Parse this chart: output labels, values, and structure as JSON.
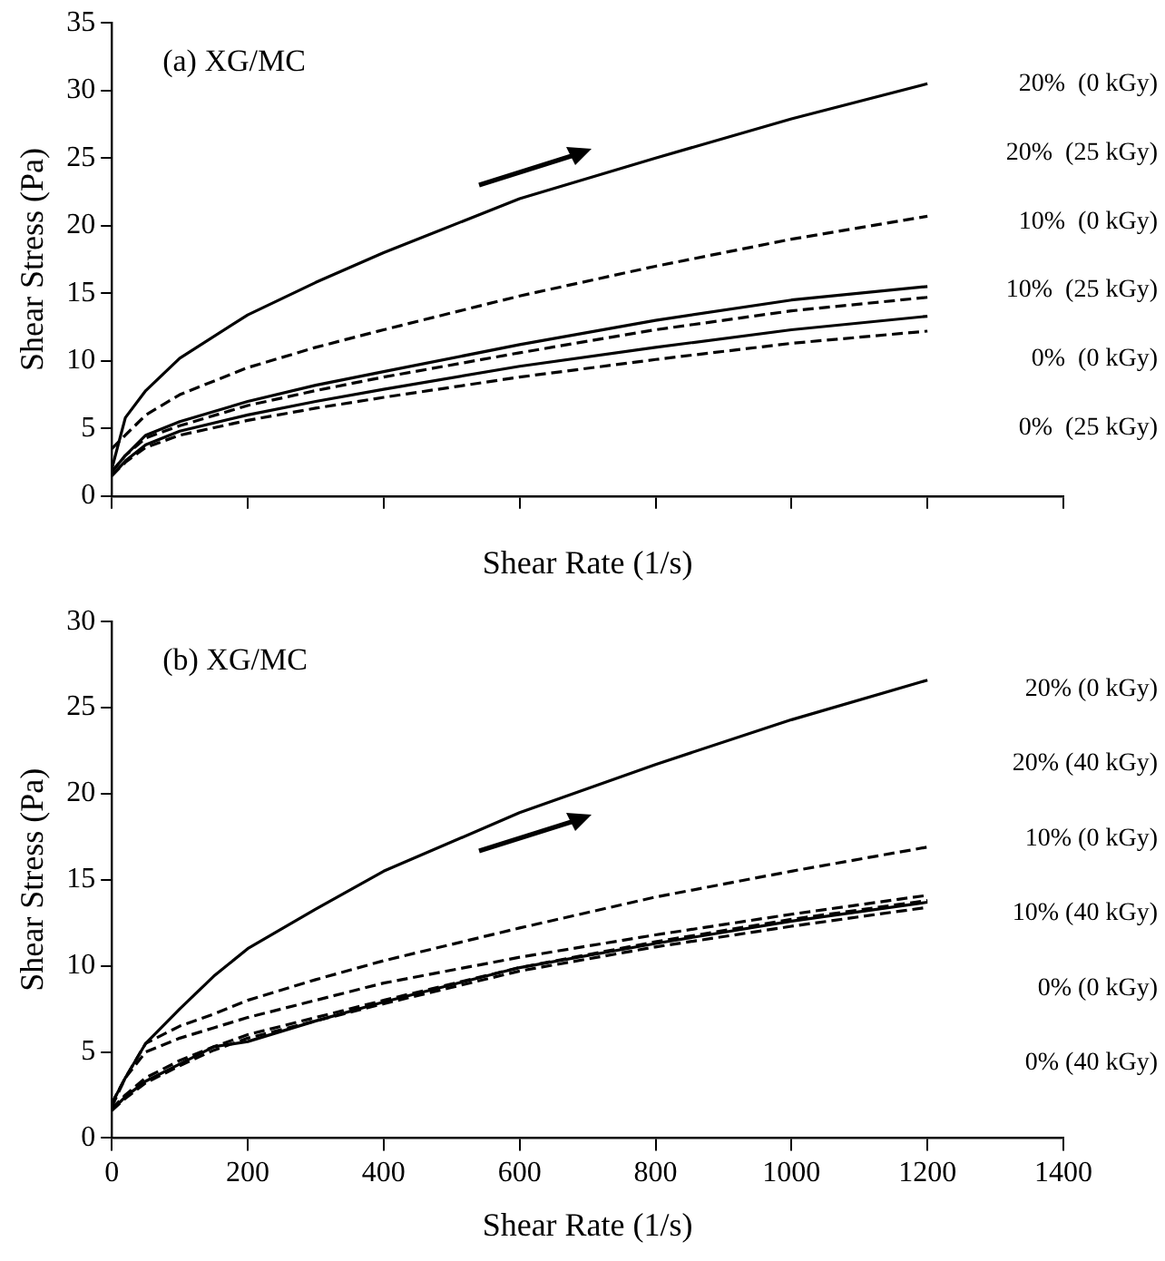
{
  "chart_data": [
    {
      "type": "line",
      "xlabel": "Shear Rate (1/s)",
      "ylabel": "Shear Stress (Pa)",
      "annotations": [
        "(a) XG/MC"
      ],
      "x": [
        0,
        20,
        50,
        100,
        200,
        300,
        400,
        600,
        800,
        1000,
        1200
      ],
      "xlim": [
        0,
        1400
      ],
      "xticks": [
        {
          "value": 0,
          "label": null
        },
        {
          "value": 200,
          "label": null
        },
        {
          "value": 400,
          "label": null
        },
        {
          "value": 600,
          "label": null
        },
        {
          "value": 800,
          "label": null
        },
        {
          "value": 1000,
          "label": null
        },
        {
          "value": 1200,
          "label": null
        },
        {
          "value": 1400,
          "label": null
        }
      ],
      "ylim": [
        0,
        35
      ],
      "yticks": [
        0,
        5,
        10,
        15,
        20,
        25,
        30,
        35
      ],
      "tick_labels": "y",
      "grid": false,
      "legend": false,
      "marker": "none",
      "series": [
        {
          "name": "20%  (0 kGy)",
          "color": "#000000",
          "line_style": "solid",
          "values": [
            2,
            5.8,
            7.8,
            10.2,
            13.4,
            15.8,
            18,
            22,
            25,
            27.9,
            30.5
          ]
        },
        {
          "name": "20%  (25 kGy)",
          "color": "#000000",
          "line_style": "dashed",
          "values": [
            3.5,
            4.5,
            6,
            7.5,
            9.5,
            11,
            12.3,
            14.8,
            17,
            19,
            20.7
          ]
        },
        {
          "name": "10%  (0 kGy)",
          "color": "#000000",
          "line_style": "solid",
          "values": [
            1.8,
            3,
            4.5,
            5.5,
            7,
            8.2,
            9.2,
            11.2,
            13,
            14.5,
            15.5
          ]
        },
        {
          "name": "10%  (25 kGy)",
          "color": "#000000",
          "line_style": "dashed",
          "values": [
            1.8,
            3,
            4.3,
            5.2,
            6.7,
            7.8,
            8.8,
            10.6,
            12.3,
            13.7,
            14.7
          ]
        },
        {
          "name": "0%  (0 kGy)",
          "color": "#000000",
          "line_style": "solid",
          "values": [
            1.5,
            2.6,
            3.8,
            4.8,
            6,
            7,
            7.9,
            9.6,
            11,
            12.3,
            13.3
          ]
        },
        {
          "name": "0%  (25 kGy)",
          "color": "#000000",
          "line_style": "dashed",
          "values": [
            1.5,
            2.5,
            3.6,
            4.5,
            5.6,
            6.5,
            7.3,
            8.8,
            10.1,
            11.3,
            12.2
          ]
        }
      ]
    },
    {
      "type": "line",
      "xlabel": "Shear Rate (1/s)",
      "ylabel": "Shear Stress (Pa)",
      "annotations": [
        "(b) XG/MC"
      ],
      "x": [
        0,
        20,
        50,
        100,
        150,
        200,
        300,
        400,
        600,
        800,
        1000,
        1200
      ],
      "xlim": [
        0,
        1400
      ],
      "xticks": [
        0,
        200,
        400,
        600,
        800,
        1000,
        1200,
        1400
      ],
      "ylim": [
        0,
        30
      ],
      "yticks": [
        0,
        5,
        10,
        15,
        20,
        25,
        30
      ],
      "grid": false,
      "legend": false,
      "marker": "none",
      "series": [
        {
          "name": "20% (0 kGy)",
          "color": "#000000",
          "line_style": "solid",
          "values": [
            2,
            3.5,
            5.5,
            7.5,
            9.4,
            11,
            13.3,
            15.5,
            18.9,
            21.7,
            24.3,
            26.6
          ]
        },
        {
          "name": "20% (40 kGy)",
          "color": "#000000",
          "line_style": "dashed",
          "values": [
            2,
            3.5,
            5.5,
            6.5,
            7.2,
            8,
            9.2,
            10.3,
            12.2,
            14,
            15.5,
            16.9
          ]
        },
        {
          "name": "10% (0 kGy)",
          "color": "#000000",
          "line_style": "dashed",
          "values": [
            1.8,
            3.5,
            5,
            5.8,
            6.4,
            7,
            8,
            9,
            10.5,
            11.8,
            13,
            14.1
          ]
        },
        {
          "name": "10% (40 kGy)",
          "color": "#000000",
          "line_style": "dashed",
          "values": [
            1.7,
            2.5,
            3.5,
            4.5,
            5.3,
            6,
            7,
            8,
            9.9,
            11.4,
            12.7,
            13.8
          ]
        },
        {
          "name": "0% (0 kGy)",
          "color": "#000000",
          "line_style": "solid",
          "values": [
            1.6,
            2.4,
            3.3,
            4.3,
            5.3,
            5.6,
            6.8,
            7.9,
            9.9,
            11.3,
            12.6,
            13.7
          ]
        },
        {
          "name": "0% (40 kGy)",
          "color": "#000000",
          "line_style": "dashed",
          "values": [
            1.6,
            2.3,
            3.2,
            4.2,
            5.1,
            5.8,
            6.8,
            7.8,
            9.7,
            11.1,
            12.3,
            13.4
          ]
        }
      ]
    }
  ]
}
